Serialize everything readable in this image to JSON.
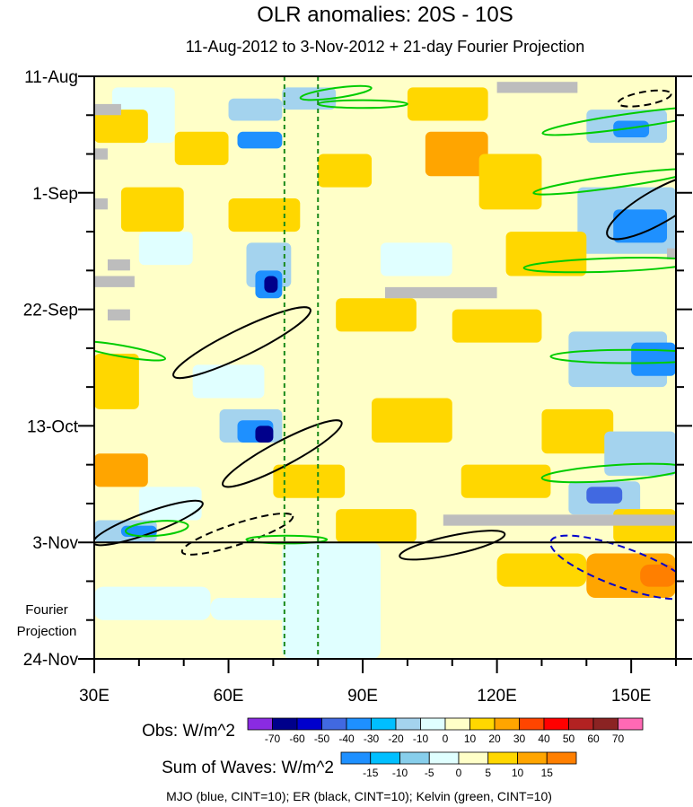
{
  "chart_data": {
    "type": "heatmap",
    "title": "OLR anomalies: 20S - 10S",
    "subtitle": "11-Aug-2012 to 3-Nov-2012 + 21-day Fourier Projection",
    "x_axis": {
      "range": [
        30,
        160
      ],
      "ticks": [
        30,
        60,
        90,
        120,
        150
      ],
      "tick_labels": [
        "30E",
        "60E",
        "90E",
        "120E",
        "150E"
      ]
    },
    "y_axis": {
      "range_days": [
        0,
        105
      ],
      "ticks_days": [
        0,
        21,
        42,
        63,
        84,
        105
      ],
      "tick_labels": [
        "11-Aug",
        "1-Sep",
        "22-Sep",
        "13-Oct",
        "3-Nov",
        "24-Nov"
      ],
      "direction": "time increases downward"
    },
    "projection_start_day": 84,
    "projection_label": [
      "Fourier",
      "Projection"
    ],
    "reference_longitudes": [
      72.5,
      80
    ],
    "obs_colorbar": {
      "label": "Obs: W/m^2",
      "levels": [
        "-70",
        "-60",
        "-50",
        "-40",
        "-30",
        "-20",
        "-10",
        "0",
        "10",
        "20",
        "30",
        "40",
        "50",
        "60",
        "70"
      ],
      "colors": [
        "#8a2be2",
        "#00008b",
        "#0000cd",
        "#4169e1",
        "#1e90ff",
        "#00bfff",
        "#a4d3ee",
        "#e0ffff",
        "#ffffc8",
        "#ffd700",
        "#ffa500",
        "#ff4500",
        "#ff0000",
        "#b22222",
        "#8b2323",
        "#ff69b4"
      ]
    },
    "waves_colorbar": {
      "label": "Sum of Waves: W/m^2",
      "levels": [
        "-15",
        "-10",
        "-5",
        "0",
        "5",
        "10",
        "15"
      ],
      "colors": [
        "#1e90ff",
        "#00bfff",
        "#87ceeb",
        "#e0ffff",
        "#ffffc8",
        "#ffd700",
        "#ffa500",
        "#ff7f00"
      ]
    },
    "contours_legend": "MJO (blue, CINT=10); ER (black, CINT=10); Kelvin (green, CINT=10)",
    "series_colors": {
      "MJO": "#0000cd",
      "ER": "#000000",
      "Kelvin": "#00cc00"
    },
    "anomaly_cells": [
      {
        "lon": 30,
        "day": 0,
        "w": 130,
        "h": 84,
        "v": 0
      },
      {
        "lon": 34,
        "day": 2,
        "w": 14,
        "h": 10,
        "v": -10
      },
      {
        "lon": 60,
        "day": 4,
        "w": 12,
        "h": 4,
        "v": -20
      },
      {
        "lon": 62,
        "day": 10,
        "w": 10,
        "h": 3,
        "v": -40
      },
      {
        "lon": 30,
        "day": 6,
        "w": 12,
        "h": 6,
        "v": 10
      },
      {
        "lon": 72,
        "day": 2,
        "w": 12,
        "h": 4,
        "v": -20
      },
      {
        "lon": 100,
        "day": 2,
        "w": 18,
        "h": 6,
        "v": 10
      },
      {
        "lon": 104,
        "day": 10,
        "w": 14,
        "h": 8,
        "v": 20
      },
      {
        "lon": 140,
        "day": 6,
        "w": 18,
        "h": 6,
        "v": -20
      },
      {
        "lon": 146,
        "day": 8,
        "w": 8,
        "h": 3,
        "v": -40
      },
      {
        "lon": 80,
        "day": 14,
        "w": 12,
        "h": 6,
        "v": 10
      },
      {
        "lon": 48,
        "day": 10,
        "w": 12,
        "h": 6,
        "v": 10
      },
      {
        "lon": 116,
        "day": 14,
        "w": 14,
        "h": 10,
        "v": 10
      },
      {
        "lon": 138,
        "day": 20,
        "w": 22,
        "h": 12,
        "v": -20
      },
      {
        "lon": 146,
        "day": 24,
        "w": 12,
        "h": 6,
        "v": -40
      },
      {
        "lon": 36,
        "day": 20,
        "w": 14,
        "h": 8,
        "v": 10
      },
      {
        "lon": 60,
        "day": 22,
        "w": 16,
        "h": 6,
        "v": 10
      },
      {
        "lon": 64,
        "day": 30,
        "w": 10,
        "h": 8,
        "v": -20
      },
      {
        "lon": 66,
        "day": 35,
        "w": 6,
        "h": 5,
        "v": -40
      },
      {
        "lon": 68,
        "day": 36,
        "w": 3,
        "h": 3,
        "v": -70
      },
      {
        "lon": 94,
        "day": 30,
        "w": 16,
        "h": 6,
        "v": -10
      },
      {
        "lon": 122,
        "day": 28,
        "w": 18,
        "h": 8,
        "v": 10
      },
      {
        "lon": 40,
        "day": 28,
        "w": 12,
        "h": 6,
        "v": -10
      },
      {
        "lon": 84,
        "day": 40,
        "w": 18,
        "h": 6,
        "v": 10
      },
      {
        "lon": 110,
        "day": 42,
        "w": 20,
        "h": 6,
        "v": 10
      },
      {
        "lon": 136,
        "day": 46,
        "w": 22,
        "h": 10,
        "v": -20
      },
      {
        "lon": 150,
        "day": 48,
        "w": 10,
        "h": 6,
        "v": -40
      },
      {
        "lon": 30,
        "day": 50,
        "w": 10,
        "h": 10,
        "v": 10
      },
      {
        "lon": 52,
        "day": 52,
        "w": 16,
        "h": 6,
        "v": -10
      },
      {
        "lon": 58,
        "day": 60,
        "w": 14,
        "h": 6,
        "v": -20
      },
      {
        "lon": 62,
        "day": 62,
        "w": 8,
        "h": 4,
        "v": -40
      },
      {
        "lon": 66,
        "day": 63,
        "w": 4,
        "h": 3,
        "v": -70
      },
      {
        "lon": 92,
        "day": 58,
        "w": 18,
        "h": 8,
        "v": 10
      },
      {
        "lon": 130,
        "day": 60,
        "w": 16,
        "h": 8,
        "v": 10
      },
      {
        "lon": 144,
        "day": 64,
        "w": 16,
        "h": 8,
        "v": -20
      },
      {
        "lon": 30,
        "day": 68,
        "w": 12,
        "h": 6,
        "v": 20
      },
      {
        "lon": 70,
        "day": 70,
        "w": 16,
        "h": 6,
        "v": 10
      },
      {
        "lon": 112,
        "day": 70,
        "w": 20,
        "h": 6,
        "v": 10
      },
      {
        "lon": 136,
        "day": 73,
        "w": 16,
        "h": 6,
        "v": -20
      },
      {
        "lon": 140,
        "day": 74,
        "w": 8,
        "h": 3,
        "v": -50
      },
      {
        "lon": 40,
        "day": 74,
        "w": 14,
        "h": 6,
        "v": -10
      },
      {
        "lon": 30,
        "day": 80,
        "w": 14,
        "h": 4,
        "v": -20
      },
      {
        "lon": 36,
        "day": 81,
        "w": 8,
        "h": 2,
        "v": -40
      },
      {
        "lon": 84,
        "day": 78,
        "w": 18,
        "h": 6,
        "v": 10
      },
      {
        "lon": 146,
        "day": 78,
        "w": 14,
        "h": 6,
        "v": 10
      }
    ],
    "missing_cells": [
      {
        "lon": 120,
        "day": 1,
        "w": 18,
        "h": 2
      },
      {
        "lon": 30,
        "day": 5,
        "w": 6,
        "h": 2
      },
      {
        "lon": 30,
        "day": 13,
        "w": 3,
        "h": 2
      },
      {
        "lon": 30,
        "day": 22,
        "w": 3,
        "h": 2
      },
      {
        "lon": 33,
        "day": 33,
        "w": 5,
        "h": 2
      },
      {
        "lon": 30,
        "day": 36,
        "w": 9,
        "h": 2
      },
      {
        "lon": 95,
        "day": 38,
        "w": 25,
        "h": 2
      },
      {
        "lon": 33,
        "day": 42,
        "w": 5,
        "h": 2
      },
      {
        "lon": 108,
        "day": 79,
        "w": 52,
        "h": 2
      },
      {
        "lon": 158,
        "day": 31,
        "w": 2,
        "h": 2
      }
    ],
    "projection_cells": [
      {
        "lon": 30,
        "day": 84,
        "w": 130,
        "h": 21,
        "v": 0
      },
      {
        "lon": 72,
        "day": 84,
        "w": 22,
        "h": 21,
        "v": -5
      },
      {
        "lon": 30,
        "day": 92,
        "w": 26,
        "h": 6,
        "v": -5
      },
      {
        "lon": 56,
        "day": 94,
        "w": 20,
        "h": 4,
        "v": -5
      },
      {
        "lon": 120,
        "day": 86,
        "w": 20,
        "h": 6,
        "v": 5
      },
      {
        "lon": 140,
        "day": 86,
        "w": 20,
        "h": 8,
        "v": 10
      },
      {
        "lon": 152,
        "day": 88,
        "w": 8,
        "h": 4,
        "v": 15
      }
    ]
  }
}
